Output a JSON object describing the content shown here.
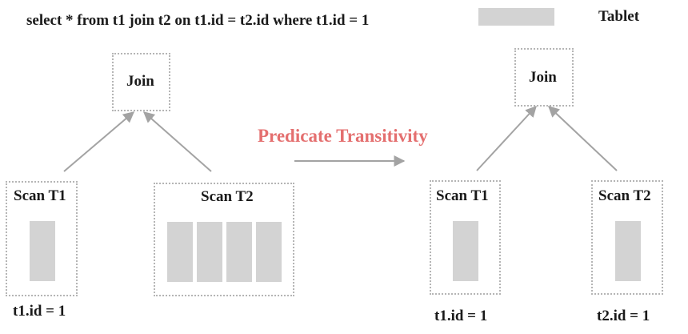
{
  "query": "select * from t1 join t2 on t1.id = t2.id where t1.id = 1",
  "legend": {
    "label": "Tablet",
    "swatch_color": "#d3d3d3"
  },
  "transform_label": "Predicate Transitivity",
  "left_plan": {
    "join_label": "Join",
    "scan1_label": "Scan T1",
    "scan2_label": "Scan T2",
    "scan1_predicate": "t1.id = 1"
  },
  "right_plan": {
    "join_label": "Join",
    "scan1_label": "Scan T1",
    "scan2_label": "Scan T2",
    "scan1_predicate": "t1.id = 1",
    "scan2_predicate": "t2.id = 1"
  },
  "colors": {
    "accent": "#e46f6f",
    "arrow": "#a3a3a3",
    "tablet": "#d3d3d3",
    "border": "#b5b5b5"
  }
}
